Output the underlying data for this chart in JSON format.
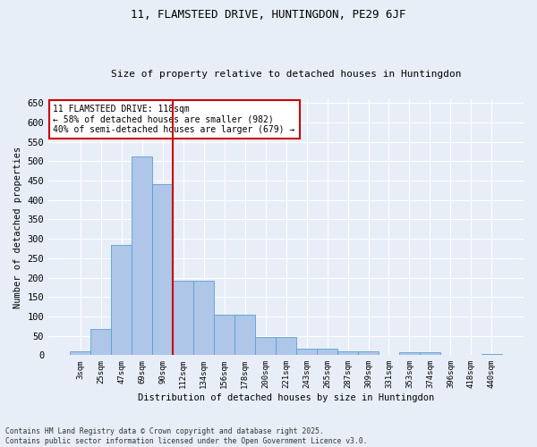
{
  "title": "11, FLAMSTEED DRIVE, HUNTINGDON, PE29 6JF",
  "subtitle": "Size of property relative to detached houses in Huntingdon",
  "xlabel": "Distribution of detached houses by size in Huntingdon",
  "ylabel": "Number of detached properties",
  "footer_line1": "Contains HM Land Registry data © Crown copyright and database right 2025.",
  "footer_line2": "Contains public sector information licensed under the Open Government Licence v3.0.",
  "categories": [
    "3sqm",
    "25sqm",
    "47sqm",
    "69sqm",
    "90sqm",
    "112sqm",
    "134sqm",
    "156sqm",
    "178sqm",
    "200sqm",
    "221sqm",
    "243sqm",
    "265sqm",
    "287sqm",
    "309sqm",
    "331sqm",
    "353sqm",
    "374sqm",
    "396sqm",
    "418sqm",
    "440sqm"
  ],
  "values": [
    10,
    68,
    285,
    512,
    440,
    192,
    192,
    105,
    105,
    46,
    46,
    18,
    18,
    10,
    10,
    0,
    7,
    7,
    0,
    0,
    4
  ],
  "bar_color": "#aec6e8",
  "bar_edge_color": "#5a9fd4",
  "vline_x": 4.5,
  "vline_color": "#cc0000",
  "annotation_box_text": "11 FLAMSTEED DRIVE: 118sqm\n← 58% of detached houses are smaller (982)\n40% of semi-detached houses are larger (679) →",
  "annotation_box_facecolor": "white",
  "annotation_box_edgecolor": "#cc0000",
  "background_color": "#e8eef8",
  "ylim": [
    0,
    660
  ],
  "yticks": [
    0,
    50,
    100,
    150,
    200,
    250,
    300,
    350,
    400,
    450,
    500,
    550,
    600,
    650
  ]
}
